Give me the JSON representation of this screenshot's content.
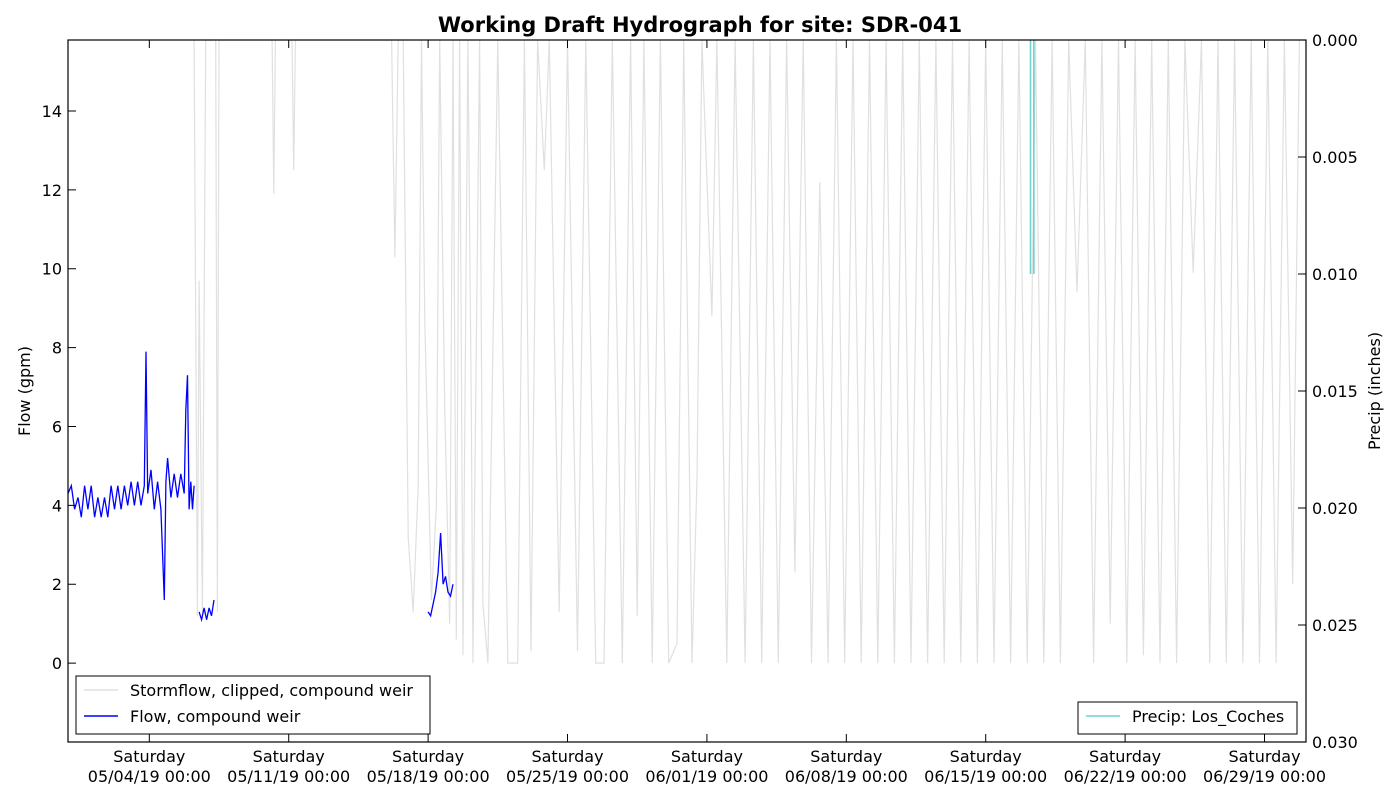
{
  "chart_data": {
    "type": "line",
    "title": "Working Draft Hydrograph for site: SDR-041",
    "ylabel": "Flow (gpm)",
    "y2label": "Precip (inches)",
    "ylim": [
      -2,
      15.8
    ],
    "y2lim": [
      0.0,
      0.03
    ],
    "y2_inverted": true,
    "xlim": [
      "2019-04-29T22:00",
      "2019-07-01T02:00"
    ],
    "y_ticks": [
      "0",
      "2",
      "4",
      "6",
      "8",
      "10",
      "12",
      "14"
    ],
    "y_tick_values": [
      0,
      2,
      4,
      6,
      8,
      10,
      12,
      14
    ],
    "y2_ticks": [
      "0.000",
      "0.005",
      "0.010",
      "0.015",
      "0.020",
      "0.025",
      "0.030"
    ],
    "y2_tick_values": [
      0.0,
      0.005,
      0.01,
      0.015,
      0.02,
      0.025,
      0.03
    ],
    "x_ticks": [
      {
        "day": "Saturday",
        "date": "05/04/19 00:00",
        "value": "2019-05-04T00:00"
      },
      {
        "day": "Saturday",
        "date": "05/11/19 00:00",
        "value": "2019-05-11T00:00"
      },
      {
        "day": "Saturday",
        "date": "05/18/19 00:00",
        "value": "2019-05-18T00:00"
      },
      {
        "day": "Saturday",
        "date": "05/25/19 00:00",
        "value": "2019-05-25T00:00"
      },
      {
        "day": "Saturday",
        "date": "06/01/19 00:00",
        "value": "2019-06-01T00:00"
      },
      {
        "day": "Saturday",
        "date": "06/08/19 00:00",
        "value": "2019-06-08T00:00"
      },
      {
        "day": "Saturday",
        "date": "06/15/19 00:00",
        "value": "2019-06-15T00:00"
      },
      {
        "day": "Saturday",
        "date": "06/22/19 00:00",
        "value": "2019-06-22T00:00"
      },
      {
        "day": "Saturday",
        "date": "06/29/19 00:00",
        "value": "2019-06-29T00:00"
      }
    ],
    "legend_left": {
      "placement": "lower-left",
      "entries": [
        {
          "label": "Stormflow, clipped, compound weir",
          "color": "#e0e0e0"
        },
        {
          "label": "Flow, compound weir",
          "color": "#0000ff"
        }
      ]
    },
    "legend_right": {
      "placement": "lower-right",
      "entries": [
        {
          "label": "Precip: Los_Coches",
          "color": "#6fd0d0"
        }
      ]
    },
    "series": [
      {
        "name": "Stormflow, clipped, compound weir",
        "color": "#e0e0e0",
        "axis": "left",
        "points": [
          [
            "2019-05-06T06:00",
            15.8
          ],
          [
            "2019-05-06T10:00",
            1.2
          ],
          [
            "2019-05-06T12:00",
            9.7
          ],
          [
            "2019-05-06T16:00",
            1.2
          ],
          [
            "2019-05-06T20:00",
            15.8
          ],
          [
            "2019-05-07T08:00",
            15.8
          ],
          [
            "2019-05-07T10:00",
            1.3
          ],
          [
            "2019-05-07T12:00",
            15.8
          ],
          [
            "2019-05-10T04:00",
            15.8
          ],
          [
            "2019-05-10T06:00",
            11.9
          ],
          [
            "2019-05-10T08:00",
            15.8
          ],
          [
            "2019-05-11T04:00",
            15.8
          ],
          [
            "2019-05-11T06:00",
            12.5
          ],
          [
            "2019-05-11T08:00",
            15.8
          ],
          [
            "2019-05-16T04:00",
            15.8
          ],
          [
            "2019-05-16T08:00",
            10.3
          ],
          [
            "2019-05-16T12:00",
            15.8
          ],
          [
            "2019-05-16T18:00",
            15.8
          ],
          [
            "2019-05-17T00:00",
            3.2
          ],
          [
            "2019-05-17T06:00",
            1.3
          ],
          [
            "2019-05-17T12:00",
            4.5
          ],
          [
            "2019-05-17T16:00",
            15.8
          ],
          [
            "2019-05-17T20:00",
            8.7
          ],
          [
            "2019-05-18T04:00",
            1.6
          ],
          [
            "2019-05-18T10:00",
            4.0
          ],
          [
            "2019-05-18T14:00",
            15.8
          ],
          [
            "2019-05-18T20:00",
            6.5
          ],
          [
            "2019-05-19T02:00",
            1.0
          ],
          [
            "2019-05-19T06:00",
            15.8
          ],
          [
            "2019-05-19T10:00",
            0.6
          ],
          [
            "2019-05-19T14:00",
            15.8
          ],
          [
            "2019-05-19T18:00",
            0.2
          ],
          [
            "2019-05-20T00:00",
            15.8
          ],
          [
            "2019-05-20T04:00",
            6.5
          ],
          [
            "2019-05-20T06:00",
            0.0
          ],
          [
            "2019-05-20T14:00",
            15.8
          ],
          [
            "2019-05-20T18:00",
            1.5
          ],
          [
            "2019-05-21T00:00",
            0.0
          ],
          [
            "2019-05-21T12:00",
            15.8
          ],
          [
            "2019-05-22T00:00",
            0.0
          ],
          [
            "2019-05-22T12:00",
            0.0
          ],
          [
            "2019-05-22T20:00",
            15.8
          ],
          [
            "2019-05-23T04:00",
            0.3
          ],
          [
            "2019-05-23T12:00",
            15.8
          ],
          [
            "2019-05-23T20:00",
            12.5
          ],
          [
            "2019-05-24T02:00",
            15.8
          ],
          [
            "2019-05-24T14:00",
            1.3
          ],
          [
            "2019-05-25T00:00",
            15.8
          ],
          [
            "2019-05-25T12:00",
            0.3
          ],
          [
            "2019-05-25T22:00",
            15.8
          ],
          [
            "2019-05-26T10:00",
            0.0
          ],
          [
            "2019-05-26T20:00",
            0.0
          ],
          [
            "2019-05-27T06:00",
            15.8
          ],
          [
            "2019-05-27T18:00",
            0.0
          ],
          [
            "2019-05-28T04:00",
            15.8
          ],
          [
            "2019-05-28T12:00",
            1.2
          ],
          [
            "2019-05-28T20:00",
            15.8
          ],
          [
            "2019-05-29T06:00",
            0.0
          ],
          [
            "2019-05-29T16:00",
            15.8
          ],
          [
            "2019-05-30T02:00",
            0.0
          ],
          [
            "2019-05-30T12:00",
            0.5
          ],
          [
            "2019-05-30T20:00",
            15.8
          ],
          [
            "2019-05-31T06:00",
            0.0
          ],
          [
            "2019-05-31T12:00",
            4.7
          ],
          [
            "2019-05-31T18:00",
            15.8
          ],
          [
            "2019-06-01T06:00",
            8.8
          ],
          [
            "2019-06-01T12:00",
            15.8
          ],
          [
            "2019-06-02T00:00",
            0.0
          ],
          [
            "2019-06-02T10:00",
            15.8
          ],
          [
            "2019-06-02T22:00",
            0.0
          ],
          [
            "2019-06-03T08:00",
            15.8
          ],
          [
            "2019-06-03T18:00",
            0.0
          ],
          [
            "2019-06-04T04:00",
            15.8
          ],
          [
            "2019-06-04T14:00",
            0.0
          ],
          [
            "2019-06-05T00:00",
            15.8
          ],
          [
            "2019-06-05T10:00",
            2.3
          ],
          [
            "2019-06-05T20:00",
            15.8
          ],
          [
            "2019-06-06T06:00",
            0.0
          ],
          [
            "2019-06-06T16:00",
            12.2
          ],
          [
            "2019-06-07T02:00",
            0.0
          ],
          [
            "2019-06-07T12:00",
            15.8
          ],
          [
            "2019-06-07T22:00",
            0.0
          ],
          [
            "2019-06-08T08:00",
            15.8
          ],
          [
            "2019-06-08T18:00",
            0.0
          ],
          [
            "2019-06-09T04:00",
            15.8
          ],
          [
            "2019-06-09T14:00",
            0.0
          ],
          [
            "2019-06-10T00:00",
            15.8
          ],
          [
            "2019-06-10T10:00",
            0.0
          ],
          [
            "2019-06-10T20:00",
            15.8
          ],
          [
            "2019-06-11T06:00",
            0.0
          ],
          [
            "2019-06-11T16:00",
            15.8
          ],
          [
            "2019-06-12T02:00",
            0.0
          ],
          [
            "2019-06-12T12:00",
            15.8
          ],
          [
            "2019-06-12T22:00",
            0.0
          ],
          [
            "2019-06-13T08:00",
            15.8
          ],
          [
            "2019-06-13T18:00",
            0.0
          ],
          [
            "2019-06-14T04:00",
            15.8
          ],
          [
            "2019-06-14T14:00",
            0.0
          ],
          [
            "2019-06-15T00:00",
            15.8
          ],
          [
            "2019-06-15T10:00",
            0.0
          ],
          [
            "2019-06-15T20:00",
            15.8
          ],
          [
            "2019-06-16T06:00",
            0.0
          ],
          [
            "2019-06-16T16:00",
            15.8
          ],
          [
            "2019-06-17T02:00",
            0.0
          ],
          [
            "2019-06-17T12:00",
            15.8
          ],
          [
            "2019-06-17T22:00",
            0.0
          ],
          [
            "2019-06-18T08:00",
            15.8
          ],
          [
            "2019-06-18T18:00",
            0.0
          ],
          [
            "2019-06-19T04:00",
            15.8
          ],
          [
            "2019-06-19T14:00",
            9.4
          ],
          [
            "2019-06-20T00:00",
            15.8
          ],
          [
            "2019-06-20T10:00",
            0.0
          ],
          [
            "2019-06-20T20:00",
            15.8
          ],
          [
            "2019-06-21T06:00",
            1.0
          ],
          [
            "2019-06-21T16:00",
            15.8
          ],
          [
            "2019-06-22T02:00",
            0.0
          ],
          [
            "2019-06-22T12:00",
            15.8
          ],
          [
            "2019-06-22T22:00",
            0.2
          ],
          [
            "2019-06-23T08:00",
            15.8
          ],
          [
            "2019-06-23T18:00",
            0.0
          ],
          [
            "2019-06-24T04:00",
            15.8
          ],
          [
            "2019-06-24T14:00",
            0.0
          ],
          [
            "2019-06-25T00:00",
            15.8
          ],
          [
            "2019-06-25T10:00",
            9.9
          ],
          [
            "2019-06-25T20:00",
            15.8
          ],
          [
            "2019-06-26T06:00",
            0.0
          ],
          [
            "2019-06-26T16:00",
            15.8
          ],
          [
            "2019-06-27T02:00",
            0.0
          ],
          [
            "2019-06-27T12:00",
            15.8
          ],
          [
            "2019-06-27T22:00",
            0.0
          ],
          [
            "2019-06-28T08:00",
            15.8
          ],
          [
            "2019-06-28T18:00",
            0.0
          ],
          [
            "2019-06-29T04:00",
            15.8
          ],
          [
            "2019-06-29T14:00",
            0.0
          ],
          [
            "2019-06-30T00:00",
            15.8
          ],
          [
            "2019-06-30T10:00",
            2.0
          ],
          [
            "2019-06-30T18:00",
            15.8
          ]
        ]
      },
      {
        "name": "Flow, compound weir",
        "color": "#0000ff",
        "axis": "left",
        "segments": [
          [
            [
              "2019-04-29T22:00",
              4.3
            ],
            [
              "2019-04-30T02:00",
              4.5
            ],
            [
              "2019-04-30T06:00",
              3.9
            ],
            [
              "2019-04-30T10:00",
              4.2
            ],
            [
              "2019-04-30T14:00",
              3.7
            ],
            [
              "2019-04-30T18:00",
              4.5
            ],
            [
              "2019-04-30T22:00",
              3.9
            ],
            [
              "2019-05-01T02:00",
              4.5
            ],
            [
              "2019-05-01T06:00",
              3.7
            ],
            [
              "2019-05-01T10:00",
              4.2
            ],
            [
              "2019-05-01T14:00",
              3.7
            ],
            [
              "2019-05-01T18:00",
              4.2
            ],
            [
              "2019-05-01T22:00",
              3.7
            ],
            [
              "2019-05-02T02:00",
              4.5
            ],
            [
              "2019-05-02T06:00",
              3.9
            ],
            [
              "2019-05-02T10:00",
              4.5
            ],
            [
              "2019-05-02T14:00",
              3.9
            ],
            [
              "2019-05-02T18:00",
              4.5
            ],
            [
              "2019-05-02T22:00",
              4.0
            ],
            [
              "2019-05-03T02:00",
              4.6
            ],
            [
              "2019-05-03T06:00",
              4.0
            ],
            [
              "2019-05-03T10:00",
              4.6
            ],
            [
              "2019-05-03T14:00",
              4.0
            ],
            [
              "2019-05-03T18:00",
              4.5
            ],
            [
              "2019-05-03T20:00",
              7.9
            ],
            [
              "2019-05-03T22:00",
              4.3
            ],
            [
              "2019-05-04T02:00",
              4.9
            ],
            [
              "2019-05-04T06:00",
              3.9
            ],
            [
              "2019-05-04T10:00",
              4.6
            ],
            [
              "2019-05-04T14:00",
              3.9
            ],
            [
              "2019-05-04T18:00",
              1.6
            ],
            [
              "2019-05-04T20:00",
              4.6
            ],
            [
              "2019-05-04T22:00",
              5.2
            ],
            [
              "2019-05-05T02:00",
              4.2
            ],
            [
              "2019-05-05T06:00",
              4.8
            ],
            [
              "2019-05-05T10:00",
              4.2
            ],
            [
              "2019-05-05T14:00",
              4.8
            ],
            [
              "2019-05-05T18:00",
              4.3
            ],
            [
              "2019-05-05T20:00",
              6.4
            ],
            [
              "2019-05-05T22:00",
              7.3
            ],
            [
              "2019-05-06T00:00",
              3.9
            ],
            [
              "2019-05-06T02:00",
              4.6
            ],
            [
              "2019-05-06T04:00",
              3.9
            ],
            [
              "2019-05-06T06:00",
              4.5
            ]
          ],
          [
            [
              "2019-05-06T12:00",
              1.3
            ],
            [
              "2019-05-06T15:00",
              1.1
            ],
            [
              "2019-05-06T18:00",
              1.4
            ],
            [
              "2019-05-06T21:00",
              1.1
            ],
            [
              "2019-05-07T00:00",
              1.4
            ],
            [
              "2019-05-07T03:00",
              1.2
            ],
            [
              "2019-05-07T06:00",
              1.6
            ]
          ],
          [
            [
              "2019-05-18T00:00",
              1.3
            ],
            [
              "2019-05-18T03:00",
              1.2
            ],
            [
              "2019-05-18T06:00",
              1.5
            ],
            [
              "2019-05-18T09:00",
              1.8
            ],
            [
              "2019-05-18T12:00",
              2.3
            ],
            [
              "2019-05-18T15:00",
              3.3
            ],
            [
              "2019-05-18T18:00",
              2.0
            ],
            [
              "2019-05-18T21:00",
              2.2
            ],
            [
              "2019-05-19T00:00",
              1.8
            ],
            [
              "2019-05-19T03:00",
              1.7
            ],
            [
              "2019-05-19T06:00",
              2.0
            ]
          ]
        ]
      },
      {
        "name": "Precip: Los_Coches",
        "color": "#6fd0d0",
        "axis": "right",
        "bars": [
          {
            "x": "2019-06-17T06:00",
            "value": 0.01
          },
          {
            "x": "2019-06-17T10:00",
            "value": 0.01
          }
        ]
      }
    ]
  }
}
